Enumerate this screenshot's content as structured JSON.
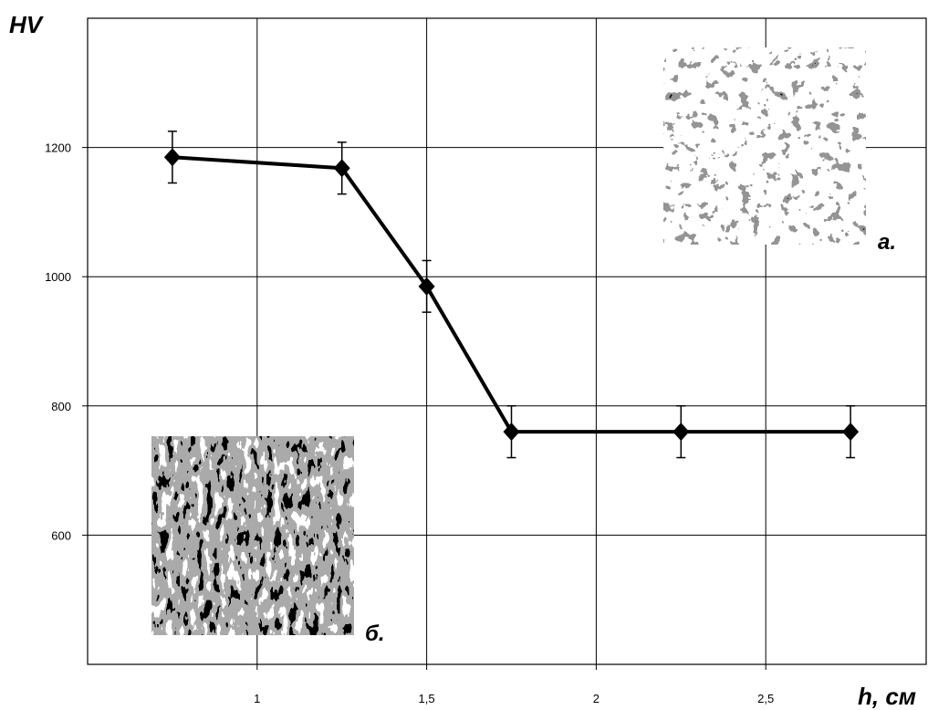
{
  "chart_data": {
    "type": "line",
    "y_label": "HV",
    "x_label": "h, см",
    "x": [
      0.75,
      1.25,
      1.5,
      1.75,
      2.25,
      2.75
    ],
    "values": [
      1185,
      1168,
      985,
      760,
      760,
      760
    ],
    "errors": [
      40,
      40,
      40,
      40,
      40,
      40
    ],
    "color": "#000000",
    "xlim": [
      0.5,
      3.0
    ],
    "xticks": [
      1,
      {
        "value": 1.5,
        "label": "1,5"
      },
      2,
      {
        "value": 2.5,
        "label": "2,5"
      }
    ],
    "ylim": [
      400,
      1400
    ],
    "yticks": [
      600,
      800,
      1000,
      1200
    ],
    "grid": true,
    "annotations": [
      "а.",
      "б."
    ]
  }
}
